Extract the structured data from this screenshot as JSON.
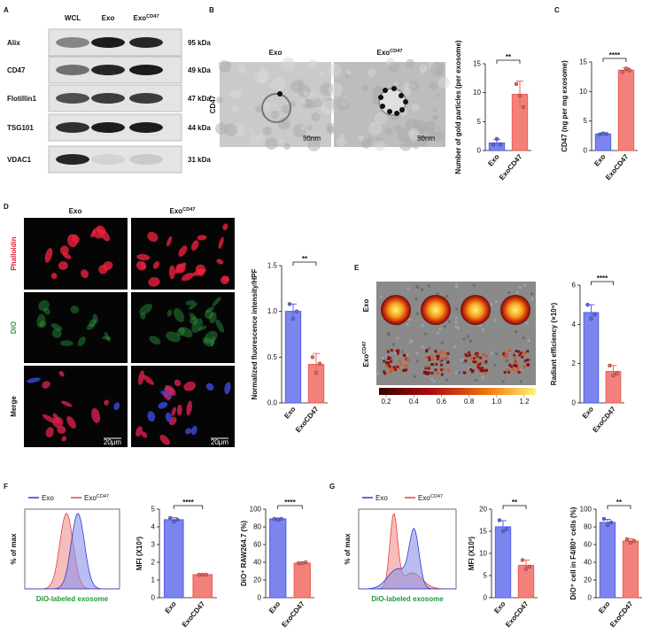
{
  "panels": [
    "A",
    "B",
    "C",
    "D",
    "E",
    "F",
    "G"
  ],
  "blot": {
    "lanes": [
      {
        "text": "WCL"
      },
      {
        "text": "Exo"
      },
      {
        "text": "Exo",
        "sup": "CD47"
      }
    ],
    "rows": [
      {
        "name": "Alix",
        "size": "95 kDa"
      },
      {
        "name": "CD47",
        "size": "49 kDa"
      },
      {
        "name": "Flotillin1",
        "size": "47 kDa"
      },
      {
        "name": "TSG101",
        "size": "44 kDa"
      },
      {
        "name": "VDAC1",
        "size": "31 kDa"
      }
    ]
  },
  "em": {
    "headers": [
      {
        "text": "Exo"
      },
      {
        "text": "Exo",
        "sup": "CD47"
      }
    ],
    "stain": "CD47",
    "scale": "50nm"
  },
  "microscopy": {
    "headers": [
      {
        "text": "Exo"
      },
      {
        "text": "Exo",
        "sup": "CD47"
      }
    ],
    "rows": [
      "Phalloidin",
      "DiO",
      "Merge"
    ],
    "scale": "20μm"
  },
  "ivis": {
    "rows": [
      {
        "text": "Exo"
      },
      {
        "text": "Exo",
        "sup": "CD47"
      }
    ],
    "colorbar_ticks": [
      0.2,
      0.4,
      0.6,
      0.8,
      {
        "value": 1,
        "label": "1.0"
      },
      1.2
    ]
  },
  "flow": [
    {
      "legend": [
        {
          "text": "Exo",
          "color": "#2b3bd6"
        },
        {
          "text": "Exo",
          "sup": "CD47",
          "color": "#e8403a"
        }
      ],
      "ylabel": "% of max",
      "xlabel": "DiO-labeled exosome"
    },
    {
      "legend": [
        {
          "text": "Exo",
          "color": "#2b3bd6"
        },
        {
          "text": "Exo",
          "sup": "CD47",
          "color": "#e8403a"
        }
      ],
      "ylabel": "% of max",
      "xlabel": "DiO-labeled exosome"
    }
  ],
  "chart_data": [
    {
      "type": "bar",
      "ylabel": "Number of gold particles (per exosome)",
      "categories": [
        "Exo",
        "ExoCD47"
      ],
      "values": [
        1.3,
        9.7
      ],
      "errors": [
        0.6,
        2.3
      ],
      "points": [
        [
          1.0,
          2.0,
          1.0
        ],
        [
          11.5,
          9.5,
          7.5
        ]
      ],
      "colors": [
        "#5b67e8",
        "#f0625a"
      ],
      "ylim": [
        0,
        15
      ],
      "yticks": [
        0,
        5,
        10,
        15
      ],
      "significance": "**"
    },
    {
      "type": "bar",
      "ylabel": "CD47 (ng per mg exosome)",
      "categories": [
        "Exo",
        "ExoCD47"
      ],
      "values": [
        2.8,
        13.6
      ],
      "errors": [
        0.2,
        0.4
      ],
      "points": [
        [
          2.7,
          2.9,
          2.8
        ],
        [
          13.3,
          13.9,
          13.6
        ]
      ],
      "colors": [
        "#5b67e8",
        "#f0625a"
      ],
      "ylim": [
        0,
        15
      ],
      "yticks": [
        0,
        5,
        10,
        15
      ],
      "significance": "****"
    },
    {
      "type": "bar",
      "ylabel": "Normalized fluorescence intensity/HPF",
      "categories": [
        "Exo",
        "ExoCD47"
      ],
      "values": [
        1.0,
        0.42
      ],
      "errors": [
        0.08,
        0.12
      ],
      "points": [
        [
          1.08,
          0.92,
          1.0
        ],
        [
          0.5,
          0.33,
          0.43
        ]
      ],
      "colors": [
        "#5b67e8",
        "#f0625a"
      ],
      "ylim": [
        0,
        1.5
      ],
      "yticks": [
        {
          "value": 0,
          "label": "0.0"
        },
        0.5,
        {
          "value": 1,
          "label": "1.0"
        },
        1.5
      ],
      "significance": "**"
    },
    {
      "type": "bar",
      "ylabel": "Radiant efficiency (×10⁹)",
      "categories": [
        "Exo",
        "ExoCD47"
      ],
      "values": [
        4.6,
        1.6
      ],
      "errors": [
        0.4,
        0.3
      ],
      "points": [
        [
          5.0,
          4.3,
          4.5
        ],
        [
          1.9,
          1.4,
          1.5
        ]
      ],
      "colors": [
        "#5b67e8",
        "#f0625a"
      ],
      "ylim": [
        0,
        6
      ],
      "yticks": [
        0,
        2,
        4,
        6
      ],
      "significance": "****"
    },
    {
      "type": "bar",
      "ylabel": "MFI (X10³)",
      "categories": [
        "Exo",
        "ExoCD47"
      ],
      "values": [
        4.4,
        1.3
      ],
      "errors": [
        0.12,
        0.04
      ],
      "points": [
        [
          4.5,
          4.3,
          4.4
        ],
        [
          1.3,
          1.3,
          1.3
        ]
      ],
      "colors": [
        "#5b67e8",
        "#f0625a"
      ],
      "ylim": [
        0,
        5
      ],
      "yticks": [
        0,
        1,
        2,
        3,
        4,
        5
      ],
      "significance": "****"
    },
    {
      "type": "bar",
      "ylabel": "DiO⁺ RAW264.7 (%)",
      "categories": [
        "Exo",
        "ExoCD47"
      ],
      "values": [
        89,
        39
      ],
      "errors": [
        1.0,
        0.8
      ],
      "points": [
        [
          89,
          88,
          89
        ],
        [
          39,
          39,
          40
        ]
      ],
      "colors": [
        "#5b67e8",
        "#f0625a"
      ],
      "ylim": [
        0,
        100
      ],
      "yticks": [
        0,
        20,
        40,
        60,
        80,
        100
      ],
      "significance": "****"
    },
    {
      "type": "bar",
      "ylabel": "MFI (X10³)",
      "categories": [
        "Exo",
        "ExoCD47"
      ],
      "values": [
        16,
        7.3
      ],
      "errors": [
        1.4,
        1.2
      ],
      "points": [
        [
          17.5,
          15,
          15.5
        ],
        [
          8.5,
          6.5,
          7
        ]
      ],
      "colors": [
        "#5b67e8",
        "#f0625a"
      ],
      "ylim": [
        0,
        20
      ],
      "yticks": [
        0,
        5,
        10,
        15,
        20
      ],
      "significance": "**"
    },
    {
      "type": "bar",
      "ylabel": "DiO⁺ cell in F4/80⁺ cells (%)",
      "categories": [
        "Exo",
        "ExoCD47"
      ],
      "values": [
        85,
        64
      ],
      "errors": [
        3.5,
        2.5
      ],
      "points": [
        [
          89,
          82,
          85
        ],
        [
          66,
          62,
          64
        ]
      ],
      "colors": [
        "#5b67e8",
        "#f0625a"
      ],
      "ylim": [
        0,
        100
      ],
      "yticks": [
        0,
        20,
        40,
        60,
        80,
        100
      ],
      "significance": "**"
    }
  ]
}
